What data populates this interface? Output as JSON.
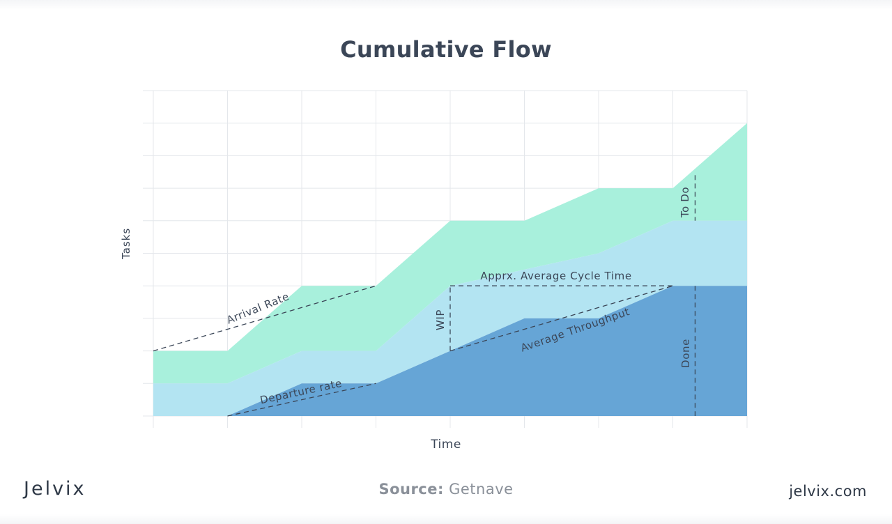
{
  "chart_data": {
    "type": "area",
    "title": "Cumulative Flow",
    "xlabel": "Time",
    "ylabel": "Tasks",
    "x": [
      0,
      1,
      2,
      3,
      4,
      5,
      6,
      7,
      8
    ],
    "xlim": [
      0,
      8
    ],
    "ylim": [
      0,
      10
    ],
    "grid": true,
    "series": [
      {
        "name": "To Do",
        "color": "#a8f0dc",
        "values": [
          2,
          2,
          4,
          4,
          6,
          6,
          7,
          7,
          9
        ]
      },
      {
        "name": "",
        "color": "#b3e4f2",
        "values": [
          1,
          1,
          2,
          2,
          4,
          4.5,
          5,
          6,
          6
        ]
      },
      {
        "name": "Done",
        "color": "#66a5d6",
        "values": [
          0,
          0,
          1,
          1,
          2,
          3,
          3,
          4,
          4
        ]
      }
    ],
    "annotations": {
      "arrival_rate": "Arrival Rate",
      "departure_rate": "Departure rate",
      "avg_cycle_time": "Apprx. Average Cycle Time",
      "wip": "WIP",
      "avg_throughput": "Average Throughput",
      "todo": "To Do",
      "done": "Done"
    }
  },
  "footer": {
    "logo": "Jelvix",
    "source_label": "Source:",
    "source_value": "Getnave",
    "site": "jelvix.com"
  }
}
